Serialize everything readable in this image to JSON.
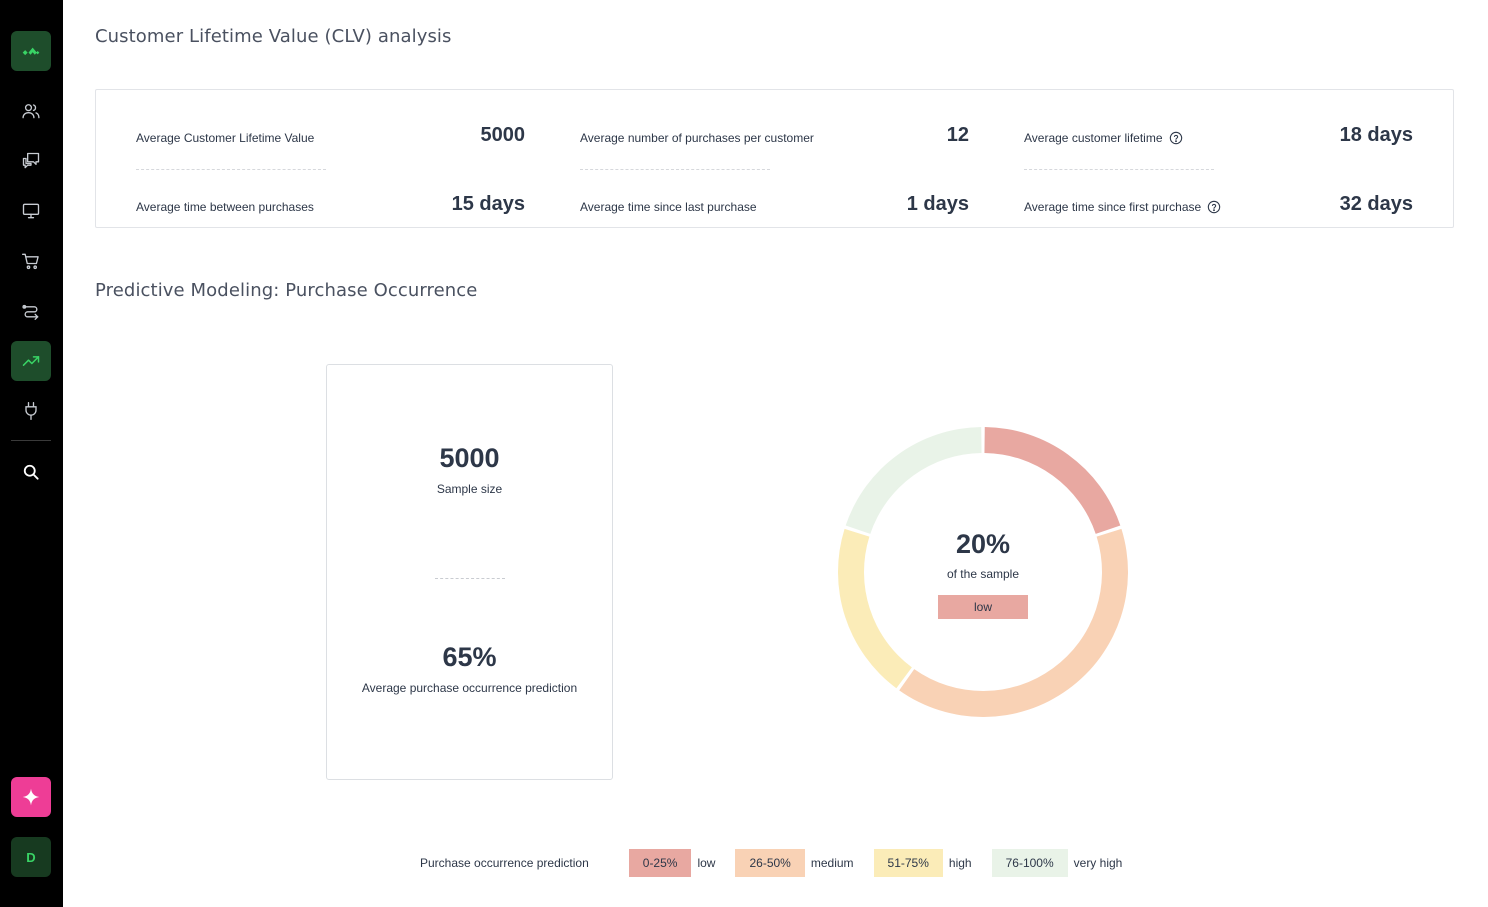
{
  "sidebar": {
    "logo": "logo-icon",
    "items": [
      {
        "name": "contacts",
        "icon": "users-icon"
      },
      {
        "name": "conversations",
        "icon": "chat-icon"
      },
      {
        "name": "displays",
        "icon": "monitor-icon"
      },
      {
        "name": "ecommerce",
        "icon": "cart-icon"
      },
      {
        "name": "flows",
        "icon": "routing-icon"
      },
      {
        "name": "analytics",
        "icon": "trending-up-icon",
        "active": true
      },
      {
        "name": "integrations",
        "icon": "plug-icon"
      },
      {
        "name": "search",
        "icon": "search-icon"
      }
    ],
    "ai_button": "sparkle-icon",
    "avatar_initial": "D"
  },
  "clv": {
    "title": "Customer Lifetime Value (CLV) analysis",
    "stats": [
      {
        "label": "Average Customer Lifetime Value",
        "value": "5000",
        "help": false
      },
      {
        "label": "Average number of purchases per customer",
        "value": "12",
        "help": false
      },
      {
        "label": "Average customer lifetime",
        "value": "18 days",
        "help": true
      },
      {
        "label": "Average time between purchases",
        "value": "15 days",
        "help": false
      },
      {
        "label": "Average time since last purchase",
        "value": "1 days",
        "help": false
      },
      {
        "label": "Average time since first purchase",
        "value": "32 days",
        "help": true
      }
    ]
  },
  "predictive": {
    "title": "Predictive Modeling: Purchase Occurrence",
    "sample_size": {
      "value": "5000",
      "label": "Sample size"
    },
    "avg_prediction": {
      "value": "65%",
      "label": "Average purchase occurrence prediction"
    },
    "donut_center": {
      "value": "20%",
      "label": "of the sample",
      "badge": "low"
    },
    "legend_title": "Purchase occurrence prediction",
    "legend": [
      {
        "range": "0-25%",
        "name": "low",
        "color": "#e8a8a1"
      },
      {
        "range": "26-50%",
        "name": "medium",
        "color": "#f9d2b5"
      },
      {
        "range": "51-75%",
        "name": "high",
        "color": "#fbecb8"
      },
      {
        "range": "76-100%",
        "name": "very high",
        "color": "#e9f3e8"
      }
    ]
  },
  "chart_data": {
    "type": "pie",
    "categories": [
      "low",
      "medium",
      "high",
      "very high"
    ],
    "values": [
      20,
      40,
      20,
      20
    ],
    "colors": [
      "#e8a8a1",
      "#f9d2b5",
      "#fbecb8",
      "#e9f3e8"
    ],
    "title": "",
    "center_label": "20%"
  }
}
